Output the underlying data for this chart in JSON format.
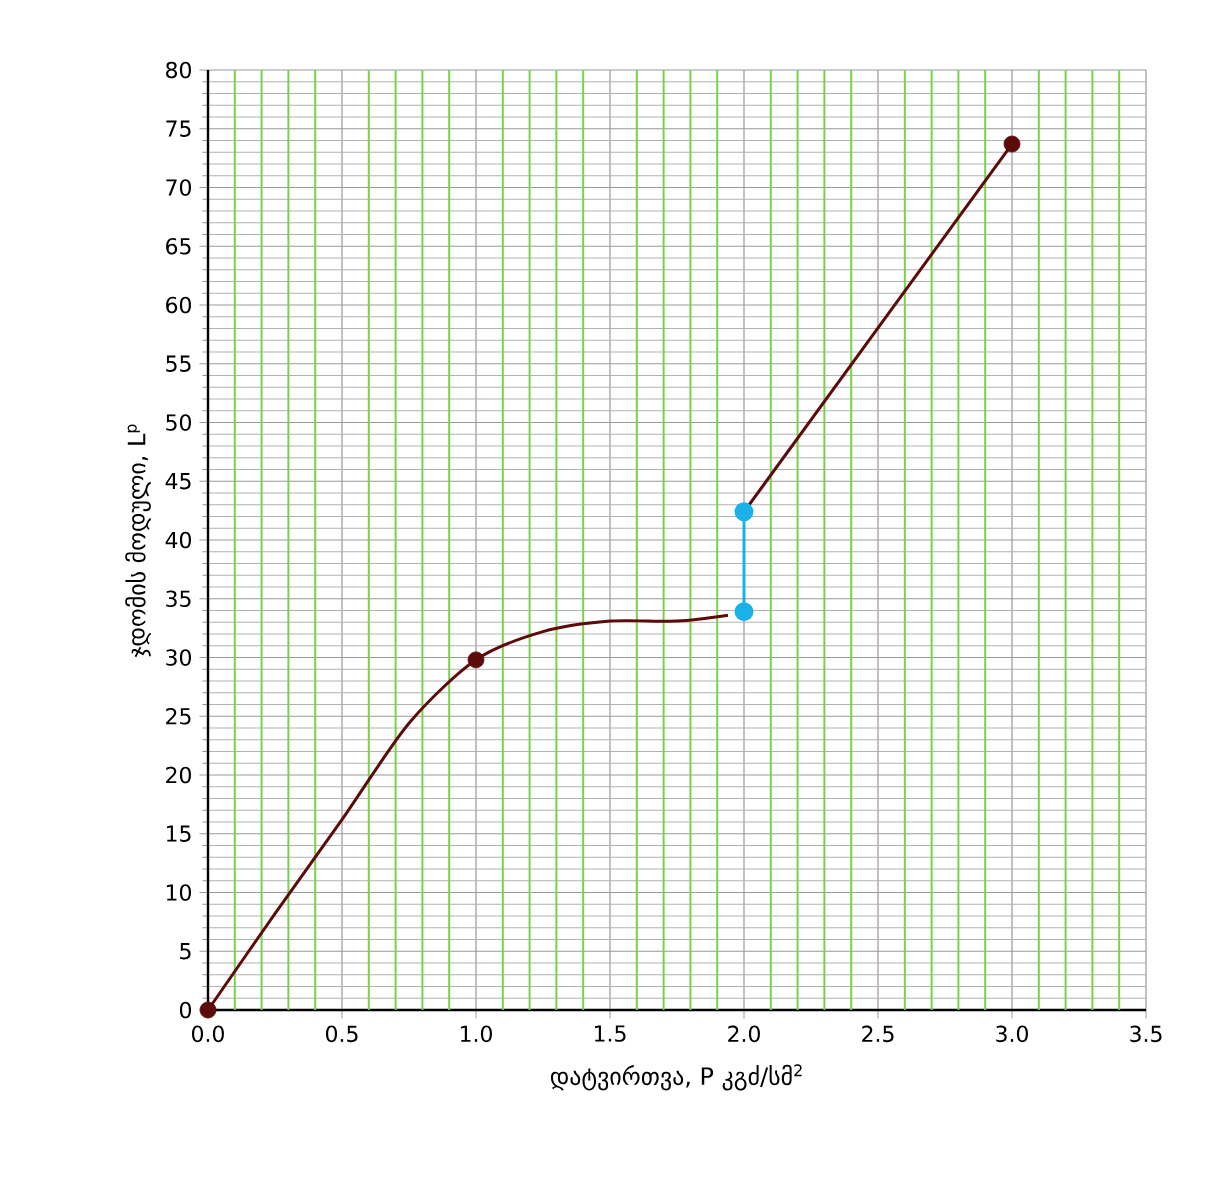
{
  "chart_data": {
    "type": "line",
    "xlabel": "დატვირთვა, P კგძ/სმ$^{2}$",
    "ylabel": "ჯდომის მოდული, L$^{p}$",
    "xlim": [
      0,
      3.5
    ],
    "xticks": [
      {
        "value": 0,
        "label": "0.0"
      },
      {
        "value": 0.1,
        "label": null
      },
      {
        "value": 0.2,
        "label": null
      },
      {
        "value": 0.3,
        "label": null
      },
      {
        "value": 0.4,
        "label": null
      },
      0.5,
      {
        "value": 0.6,
        "label": null
      },
      {
        "value": 0.7,
        "label": null
      },
      {
        "value": 0.8,
        "label": null
      },
      {
        "value": 0.9,
        "label": null
      },
      {
        "value": 1,
        "label": "1.0"
      },
      {
        "value": 1.1,
        "label": null
      },
      {
        "value": 1.2,
        "label": null
      },
      {
        "value": 1.3,
        "label": null
      },
      {
        "value": 1.4,
        "label": null
      },
      1.5,
      {
        "value": 1.6,
        "label": null
      },
      {
        "value": 1.7,
        "label": null
      },
      {
        "value": 1.8,
        "label": null
      },
      {
        "value": 1.9,
        "label": null
      },
      {
        "value": 2,
        "label": "2.0"
      },
      {
        "value": 2.1,
        "label": null
      },
      {
        "value": 2.2,
        "label": null
      },
      {
        "value": 2.3,
        "label": null
      },
      {
        "value": 2.4,
        "label": null
      },
      2.5,
      {
        "value": 2.6,
        "label": null
      },
      {
        "value": 2.7,
        "label": null
      },
      {
        "value": 2.8,
        "label": null
      },
      {
        "value": 2.9,
        "label": null
      },
      {
        "value": 3,
        "label": "3.0"
      },
      {
        "value": 3.1,
        "label": null
      },
      {
        "value": 3.2,
        "label": null
      },
      {
        "value": 3.3,
        "label": null
      },
      {
        "value": 3.4,
        "label": null
      },
      3.5
    ],
    "ylim": [
      0,
      80
    ],
    "yticks": [
      0,
      5,
      10,
      15,
      20,
      25,
      30,
      35,
      40,
      45,
      50,
      55,
      60,
      65,
      70,
      75,
      80
    ],
    "grid": true,
    "legend": false,
    "series": [
      {
        "type": "line",
        "color": "#5c0a0a",
        "marker": "none",
        "x": [
          0,
          0.25,
          0.5,
          0.75,
          1,
          1.25,
          1.5,
          1.75,
          1.94
        ],
        "values": [
          0,
          8.2,
          16.2,
          24.4,
          29.8,
          32.2,
          33.1,
          33.1,
          33.6
        ]
      },
      {
        "type": "line",
        "color": "#1ab0e8",
        "marker": "circle",
        "x": [
          2,
          2
        ],
        "values": [
          33.9,
          42.4
        ]
      },
      {
        "type": "line",
        "color": "#5c0a0a",
        "marker": "none",
        "x": [
          2,
          3
        ],
        "values": [
          42.4,
          73.7
        ]
      },
      {
        "type": "scatter",
        "color": "#5c0a0a",
        "marker": "circle",
        "x": [
          0,
          1,
          3
        ],
        "values": [
          0,
          29.8,
          73.7
        ]
      }
    ]
  }
}
